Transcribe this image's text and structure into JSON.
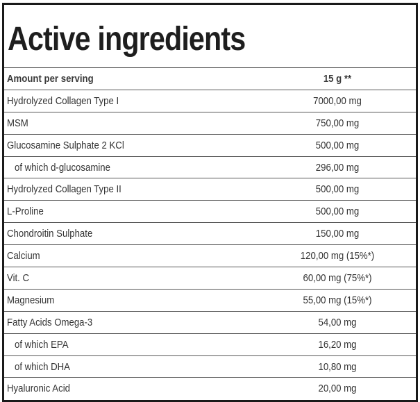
{
  "title": "Active ingredients",
  "header": {
    "label": "Amount per serving",
    "value": "15 g **"
  },
  "rows": [
    {
      "name": "Hydrolyzed Collagen Type I",
      "value": "7000,00 mg",
      "sub": false
    },
    {
      "name": "MSM",
      "value": "750,00 mg",
      "sub": false
    },
    {
      "name": "Glucosamine Sulphate 2 KCl",
      "value": "500,00 mg",
      "sub": false
    },
    {
      "name": "of which d-glucosamine",
      "value": "296,00 mg",
      "sub": true
    },
    {
      "name": "Hydrolyzed Collagen Type II",
      "value": "500,00 mg",
      "sub": false
    },
    {
      "name": "L-Proline",
      "value": "500,00 mg",
      "sub": false
    },
    {
      "name": "Chondroitin Sulphate",
      "value": "150,00 mg",
      "sub": false
    },
    {
      "name": "Calcium",
      "value": "120,00 mg (15%*)",
      "sub": false
    },
    {
      "name": "Vit. C",
      "value": "60,00 mg (75%*)",
      "sub": false
    },
    {
      "name": "Magnesium",
      "value": "55,00 mg (15%*)",
      "sub": false
    },
    {
      "name": "Fatty Acids Omega-3",
      "value": "54,00 mg",
      "sub": false
    },
    {
      "name": "of which EPA",
      "value": "16,20 mg",
      "sub": true
    },
    {
      "name": "of which DHA",
      "value": "10,80 mg",
      "sub": true
    },
    {
      "name": "Hyaluronic Acid",
      "value": "20,00 mg",
      "sub": false
    }
  ]
}
